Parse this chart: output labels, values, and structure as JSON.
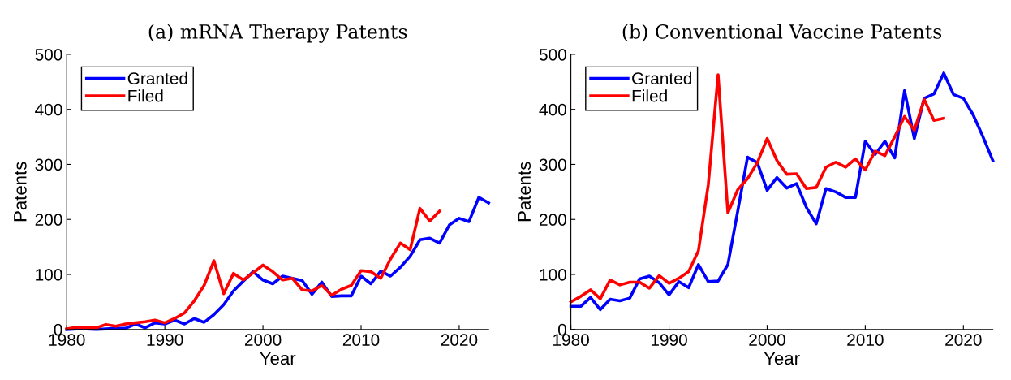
{
  "chart_data": [
    {
      "type": "line",
      "title": "(a) mRNA Therapy Patents",
      "xlabel": "Year",
      "ylabel": "Patents",
      "xlim": [
        1980,
        2023
      ],
      "ylim": [
        0,
        500
      ],
      "xticks": [
        1980,
        1990,
        2000,
        2010,
        2020
      ],
      "yticks": [
        0,
        100,
        200,
        300,
        400,
        500
      ],
      "grid": false,
      "legend": "top left",
      "series": [
        {
          "name": "Granted",
          "color": "#0000ff",
          "x": [
            1980,
            1981,
            1982,
            1983,
            1984,
            1985,
            1986,
            1987,
            1988,
            1989,
            1990,
            1991,
            1992,
            1993,
            1994,
            1995,
            1996,
            1997,
            1998,
            1999,
            2000,
            2001,
            2002,
            2003,
            2004,
            2005,
            2006,
            2007,
            2008,
            2009,
            2010,
            2011,
            2012,
            2013,
            2014,
            2015,
            2016,
            2017,
            2018,
            2019,
            2020,
            2021,
            2022,
            2023
          ],
          "values": [
            0,
            1,
            1,
            0,
            1,
            2,
            2,
            10,
            3,
            12,
            10,
            17,
            10,
            20,
            13,
            27,
            45,
            70,
            88,
            105,
            90,
            83,
            97,
            93,
            89,
            64,
            86,
            60,
            61,
            61,
            97,
            83,
            106,
            97,
            113,
            133,
            163,
            166,
            157,
            190,
            202,
            196,
            240,
            230
          ]
        },
        {
          "name": "Filed",
          "color": "#ff0000",
          "x": [
            1980,
            1981,
            1982,
            1983,
            1984,
            1985,
            1986,
            1987,
            1988,
            1989,
            1990,
            1991,
            1992,
            1993,
            1994,
            1995,
            1996,
            1997,
            1998,
            1999,
            2000,
            2001,
            2002,
            2003,
            2004,
            2005,
            2006,
            2007,
            2008,
            2009,
            2010,
            2011,
            2012,
            2013,
            2014,
            2015,
            2016,
            2017,
            2018
          ],
          "values": [
            1,
            4,
            3,
            3,
            9,
            6,
            10,
            12,
            14,
            17,
            12,
            20,
            30,
            52,
            80,
            125,
            65,
            102,
            90,
            103,
            117,
            105,
            90,
            93,
            72,
            70,
            80,
            62,
            73,
            80,
            107,
            105,
            93,
            128,
            157,
            145,
            220,
            197,
            215
          ]
        }
      ]
    },
    {
      "type": "line",
      "title": "(b) Conventional Vaccine Patents",
      "xlabel": "Year",
      "ylabel": "Patents",
      "xlim": [
        1980,
        2023
      ],
      "ylim": [
        0,
        500
      ],
      "xticks": [
        1980,
        1990,
        2000,
        2010,
        2020
      ],
      "yticks": [
        0,
        100,
        200,
        300,
        400,
        500
      ],
      "grid": false,
      "legend": "top left",
      "series": [
        {
          "name": "Granted",
          "color": "#0000ff",
          "x": [
            1980,
            1981,
            1982,
            1983,
            1984,
            1985,
            1986,
            1987,
            1988,
            1989,
            1990,
            1991,
            1992,
            1993,
            1994,
            1995,
            1996,
            1997,
            1998,
            1999,
            2000,
            2001,
            2002,
            2003,
            2004,
            2005,
            2006,
            2007,
            2008,
            2009,
            2010,
            2011,
            2012,
            2013,
            2014,
            2015,
            2016,
            2017,
            2018,
            2019,
            2020,
            2021,
            2022,
            2023
          ],
          "values": [
            42,
            42,
            58,
            36,
            55,
            52,
            57,
            92,
            97,
            85,
            63,
            87,
            76,
            118,
            87,
            88,
            118,
            215,
            313,
            303,
            253,
            276,
            257,
            265,
            222,
            192,
            256,
            250,
            240,
            240,
            342,
            318,
            342,
            312,
            434,
            347,
            420,
            428,
            466,
            427,
            420,
            390,
            350,
            307
          ]
        },
        {
          "name": "Filed",
          "color": "#ff0000",
          "x": [
            1980,
            1981,
            1982,
            1983,
            1984,
            1985,
            1986,
            1987,
            1988,
            1989,
            1990,
            1991,
            1992,
            1993,
            1994,
            1995,
            1996,
            1997,
            1998,
            1999,
            2000,
            2001,
            2002,
            2003,
            2004,
            2005,
            2006,
            2007,
            2008,
            2009,
            2010,
            2011,
            2012,
            2013,
            2014,
            2015,
            2016,
            2017,
            2018
          ],
          "values": [
            50,
            60,
            72,
            56,
            90,
            81,
            86,
            86,
            75,
            98,
            84,
            93,
            105,
            143,
            263,
            463,
            212,
            254,
            274,
            303,
            347,
            307,
            282,
            283,
            256,
            258,
            295,
            304,
            295,
            310,
            290,
            324,
            316,
            350,
            387,
            362,
            418,
            380,
            384
          ]
        }
      ]
    }
  ]
}
